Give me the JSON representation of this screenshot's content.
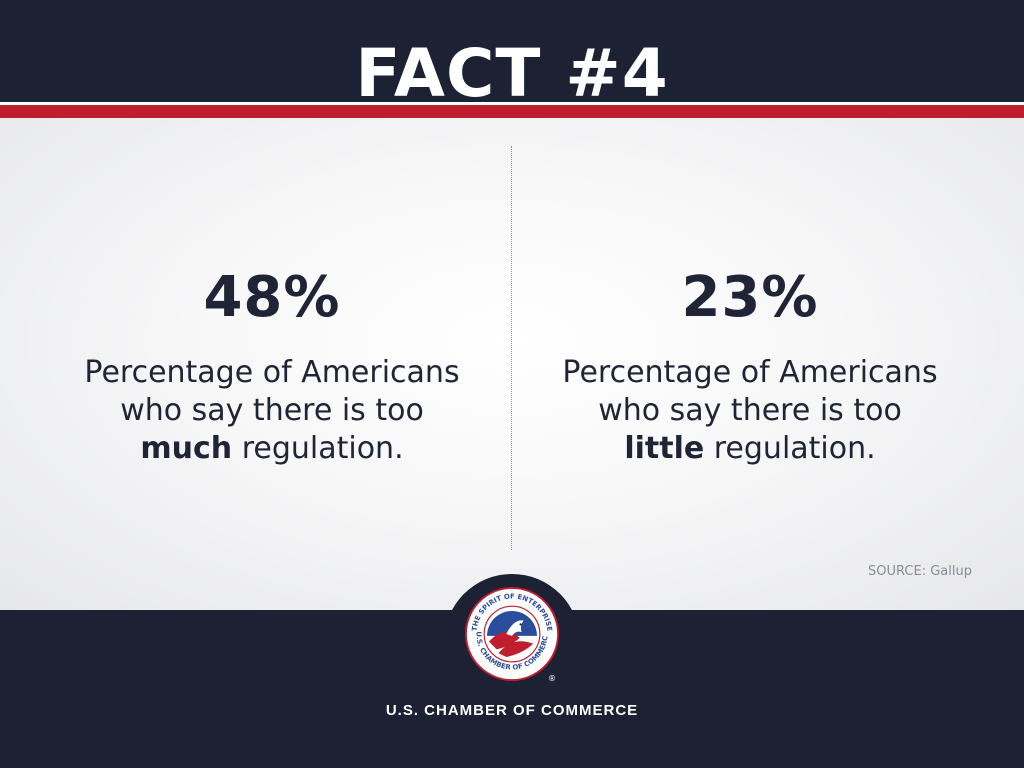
{
  "header": {
    "title": "FACT #4"
  },
  "facts": [
    {
      "value": "48%",
      "desc_line1": "Percentage of Americans",
      "desc_line2": "who say there is too",
      "emphasis": "much",
      "desc_end": " regulation."
    },
    {
      "value": "23%",
      "desc_line1": "Percentage of Americans",
      "desc_line2": "who say there is too",
      "emphasis": "little",
      "desc_end": " regulation."
    }
  ],
  "source": "SOURCE: Gallup",
  "footer": {
    "org_name": "U.S. CHAMBER OF COMMERCE",
    "logo_text_top": "THE SPIRIT OF ENTERPRISE",
    "logo_text_bottom": "U.S. CHAMBER OF COMMERCE",
    "registered": "®"
  },
  "colors": {
    "navy": "#1c2134",
    "red": "#bf1e2e",
    "text": "#1f2436",
    "logo_blue": "#2a4d9c"
  }
}
